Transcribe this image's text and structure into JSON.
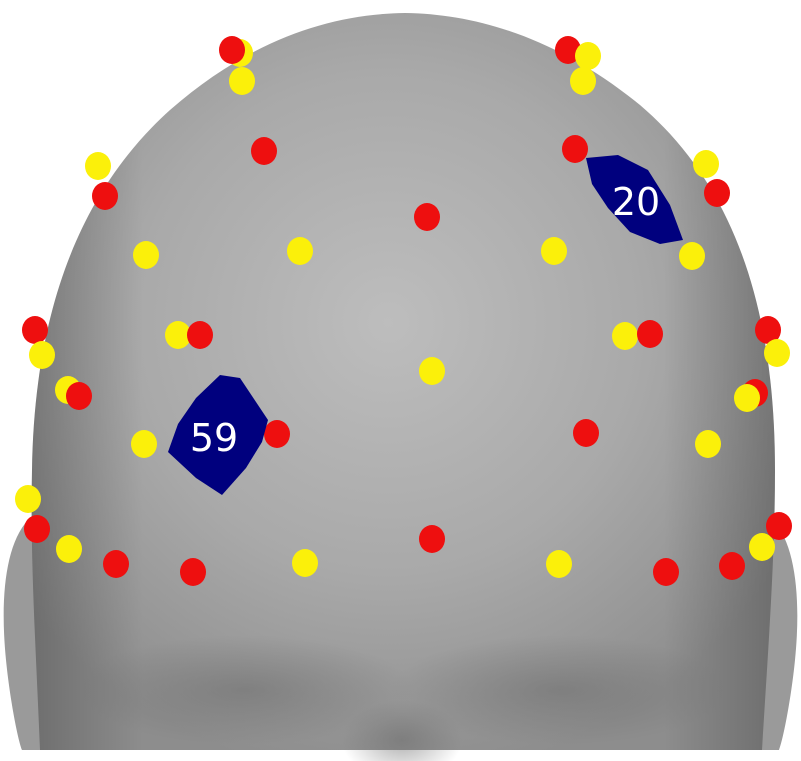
{
  "scene": {
    "subject": "3D head scan",
    "colors": {
      "background": "#ffffff",
      "skin": "#a8a8a8",
      "marker_red": "#ee0f0f",
      "marker_yellow": "#fbf00a",
      "patch": "#00007e",
      "patch_label": "#ffffff"
    }
  },
  "patches": [
    {
      "label": "20"
    },
    {
      "label": "59"
    }
  ]
}
